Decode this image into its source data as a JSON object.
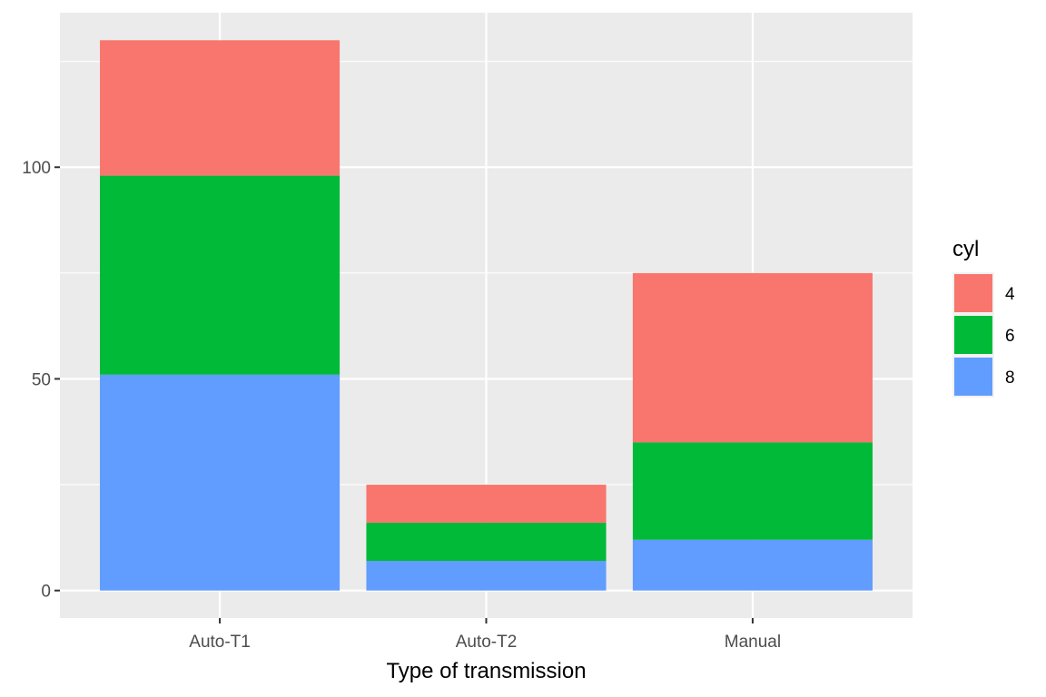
{
  "chart_data": {
    "type": "bar",
    "stacked": true,
    "categories": [
      "Auto-T1",
      "Auto-T2",
      "Manual"
    ],
    "series": [
      {
        "name": "4",
        "values": [
          32,
          9,
          40
        ],
        "color": "#F8766D"
      },
      {
        "name": "6",
        "values": [
          47,
          9,
          23
        ],
        "color": "#00BA38"
      },
      {
        "name": "8",
        "values": [
          51,
          7,
          12
        ],
        "color": "#619CFF"
      }
    ],
    "stack_order_bottom_to_top": [
      "8",
      "6",
      "4"
    ],
    "xlabel": "Type of transmission",
    "ylabel": "",
    "ylim": [
      -6.5,
      136.5
    ],
    "yticks": [
      0,
      50,
      100
    ],
    "grid": true,
    "legend": {
      "title": "cyl",
      "position": "right",
      "entries": [
        "4",
        "6",
        "8"
      ]
    },
    "colors": {
      "panel_background": "#EBEBEB",
      "grid_line": "#FFFFFF",
      "tick_text": "#4D4D4D"
    }
  }
}
